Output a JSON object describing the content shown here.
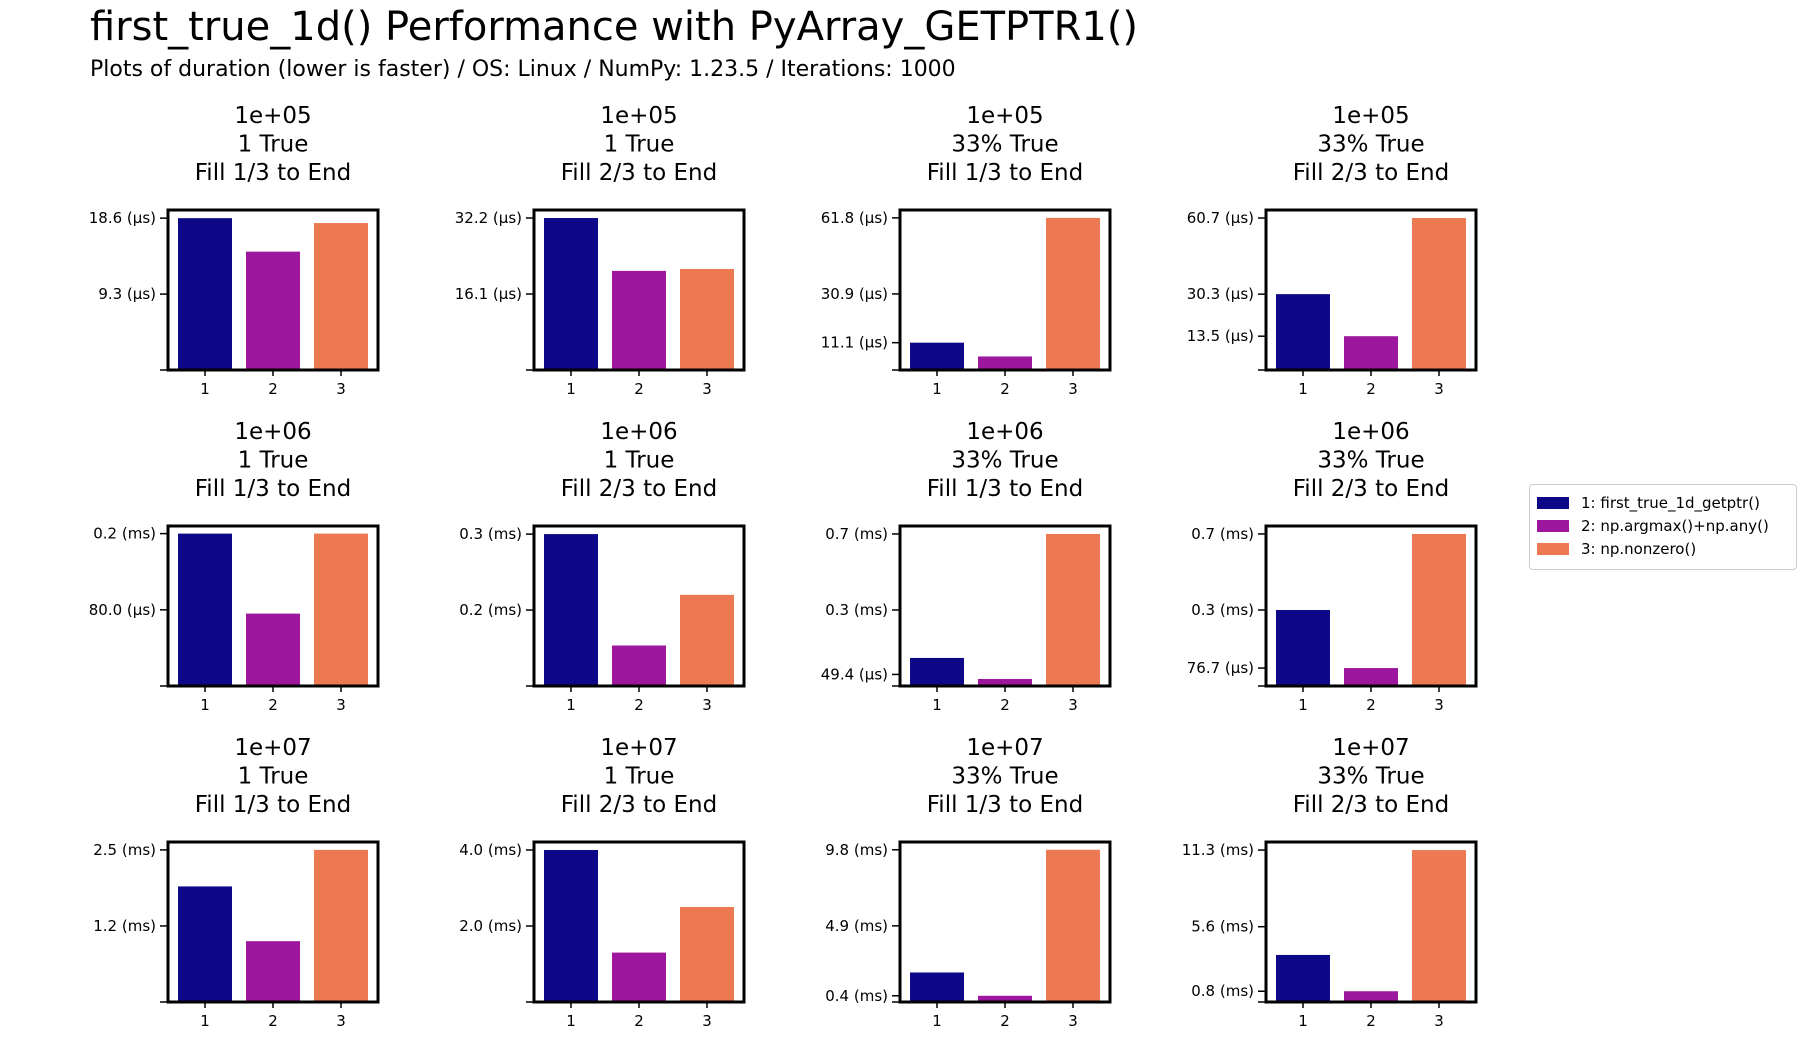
{
  "figure": {
    "title": "first_true_1d() Performance with PyArray_GETPTR1()",
    "subtitle": "Plots of duration (lower is faster) / OS: Linux / NumPy: 1.23.5 / Iterations: 1000"
  },
  "legend": {
    "items": [
      {
        "label": "1: first_true_1d_getptr()",
        "color": "#0d0887"
      },
      {
        "label": "2: np.argmax()+np.any()",
        "color": "#9c179e"
      },
      {
        "label": "3: np.nonzero()",
        "color": "#ed7953"
      }
    ]
  },
  "chart_data": [
    {
      "type": "bar",
      "title": [
        "1e+05",
        "1 True",
        "Fill 1/3 to End"
      ],
      "categories": [
        "1",
        "2",
        "3"
      ],
      "values": [
        18.6,
        14.5,
        18.0
      ],
      "unit": "µs",
      "ytick_values": [
        9.3,
        18.6
      ],
      "ytick_labels": [
        "9.3 (µs)",
        "18.6 (µs)"
      ],
      "ylim": [
        0,
        19.6
      ]
    },
    {
      "type": "bar",
      "title": [
        "1e+05",
        "1 True",
        "Fill 2/3 to End"
      ],
      "categories": [
        "1",
        "2",
        "3"
      ],
      "values": [
        32.2,
        21.0,
        21.4
      ],
      "unit": "µs",
      "ytick_values": [
        16.1,
        32.2
      ],
      "ytick_labels": [
        "16.1 (µs)",
        "32.2 (µs)"
      ],
      "ylim": [
        0,
        33.9
      ]
    },
    {
      "type": "bar",
      "title": [
        "1e+05",
        "33% True",
        "Fill 1/3 to End"
      ],
      "categories": [
        "1",
        "2",
        "3"
      ],
      "values": [
        11.1,
        5.5,
        61.8
      ],
      "unit": "µs",
      "ytick_values": [
        11.1,
        30.9,
        61.8
      ],
      "ytick_labels": [
        "11.1 (µs)",
        "30.9 (µs)",
        "61.8 (µs)"
      ],
      "ylim": [
        0,
        65.0
      ]
    },
    {
      "type": "bar",
      "title": [
        "1e+05",
        "33% True",
        "Fill 2/3 to End"
      ],
      "categories": [
        "1",
        "2",
        "3"
      ],
      "values": [
        30.3,
        13.5,
        60.7
      ],
      "unit": "µs",
      "ytick_values": [
        13.5,
        30.3,
        60.7
      ],
      "ytick_labels": [
        "13.5 (µs)",
        "30.3 (µs)",
        "60.7 (µs)"
      ],
      "ylim": [
        0,
        63.9
      ]
    },
    {
      "type": "bar",
      "title": [
        "1e+06",
        "1 True",
        "Fill 1/3 to End"
      ],
      "categories": [
        "1",
        "2",
        "3"
      ],
      "values": [
        160,
        76,
        160
      ],
      "unit": "µs",
      "ytick_values": [
        80,
        160
      ],
      "ytick_labels": [
        "80.0 (µs)",
        "0.2 (ms)"
      ],
      "ylim": [
        0,
        168
      ]
    },
    {
      "type": "bar",
      "title": [
        "1e+06",
        "1 True",
        "Fill 2/3 to End"
      ],
      "categories": [
        "1",
        "2",
        "3"
      ],
      "values": [
        0.3,
        0.08,
        0.18
      ],
      "unit": "ms",
      "ytick_values": [
        0.15,
        0.3
      ],
      "ytick_labels": [
        "0.2 (ms)",
        "0.3 (ms)"
      ],
      "ylim": [
        0,
        0.316
      ]
    },
    {
      "type": "bar",
      "title": [
        "1e+06",
        "33% True",
        "Fill 1/3 to End"
      ],
      "categories": [
        "1",
        "2",
        "3"
      ],
      "values": [
        0.12,
        0.03,
        0.65
      ],
      "unit": "ms",
      "ytick_values": [
        0.0494,
        0.325,
        0.65
      ],
      "ytick_labels": [
        "49.4 (µs)",
        "0.3 (ms)",
        "0.7 (ms)"
      ],
      "ylim": [
        0,
        0.684
      ]
    },
    {
      "type": "bar",
      "title": [
        "1e+06",
        "33% True",
        "Fill 2/3 to End"
      ],
      "categories": [
        "1",
        "2",
        "3"
      ],
      "values": [
        0.325,
        0.0767,
        0.65
      ],
      "unit": "ms",
      "ytick_values": [
        0.0767,
        0.325,
        0.65
      ],
      "ytick_labels": [
        "76.7 (µs)",
        "0.3 (ms)",
        "0.7 (ms)"
      ],
      "ylim": [
        0,
        0.684
      ]
    },
    {
      "type": "bar",
      "title": [
        "1e+07",
        "1 True",
        "Fill 1/3 to End"
      ],
      "categories": [
        "1",
        "2",
        "3"
      ],
      "values": [
        1.9,
        1.0,
        2.5
      ],
      "unit": "ms",
      "ytick_values": [
        1.25,
        2.5
      ],
      "ytick_labels": [
        "1.2 (ms)",
        "2.5 (ms)"
      ],
      "ylim": [
        0,
        2.63
      ]
    },
    {
      "type": "bar",
      "title": [
        "1e+07",
        "1 True",
        "Fill 2/3 to End"
      ],
      "categories": [
        "1",
        "2",
        "3"
      ],
      "values": [
        4.0,
        1.3,
        2.5
      ],
      "unit": "ms",
      "ytick_values": [
        2.0,
        4.0
      ],
      "ytick_labels": [
        "2.0 (ms)",
        "4.0 (ms)"
      ],
      "ylim": [
        0,
        4.21
      ]
    },
    {
      "type": "bar",
      "title": [
        "1e+07",
        "33% True",
        "Fill 1/3 to End"
      ],
      "categories": [
        "1",
        "2",
        "3"
      ],
      "values": [
        1.9,
        0.4,
        9.8
      ],
      "unit": "ms",
      "ytick_values": [
        0.4,
        4.9,
        9.8
      ],
      "ytick_labels": [
        "0.4 (ms)",
        "4.9 (ms)",
        "9.8 (ms)"
      ],
      "ylim": [
        0,
        10.3
      ]
    },
    {
      "type": "bar",
      "title": [
        "1e+07",
        "33% True",
        "Fill 2/3 to End"
      ],
      "categories": [
        "1",
        "2",
        "3"
      ],
      "values": [
        3.5,
        0.8,
        11.3
      ],
      "unit": "ms",
      "ytick_values": [
        0.8,
        5.6,
        11.3
      ],
      "ytick_labels": [
        "0.8 (ms)",
        "5.6 (ms)",
        "11.3 (ms)"
      ],
      "ylim": [
        0,
        11.9
      ]
    }
  ]
}
